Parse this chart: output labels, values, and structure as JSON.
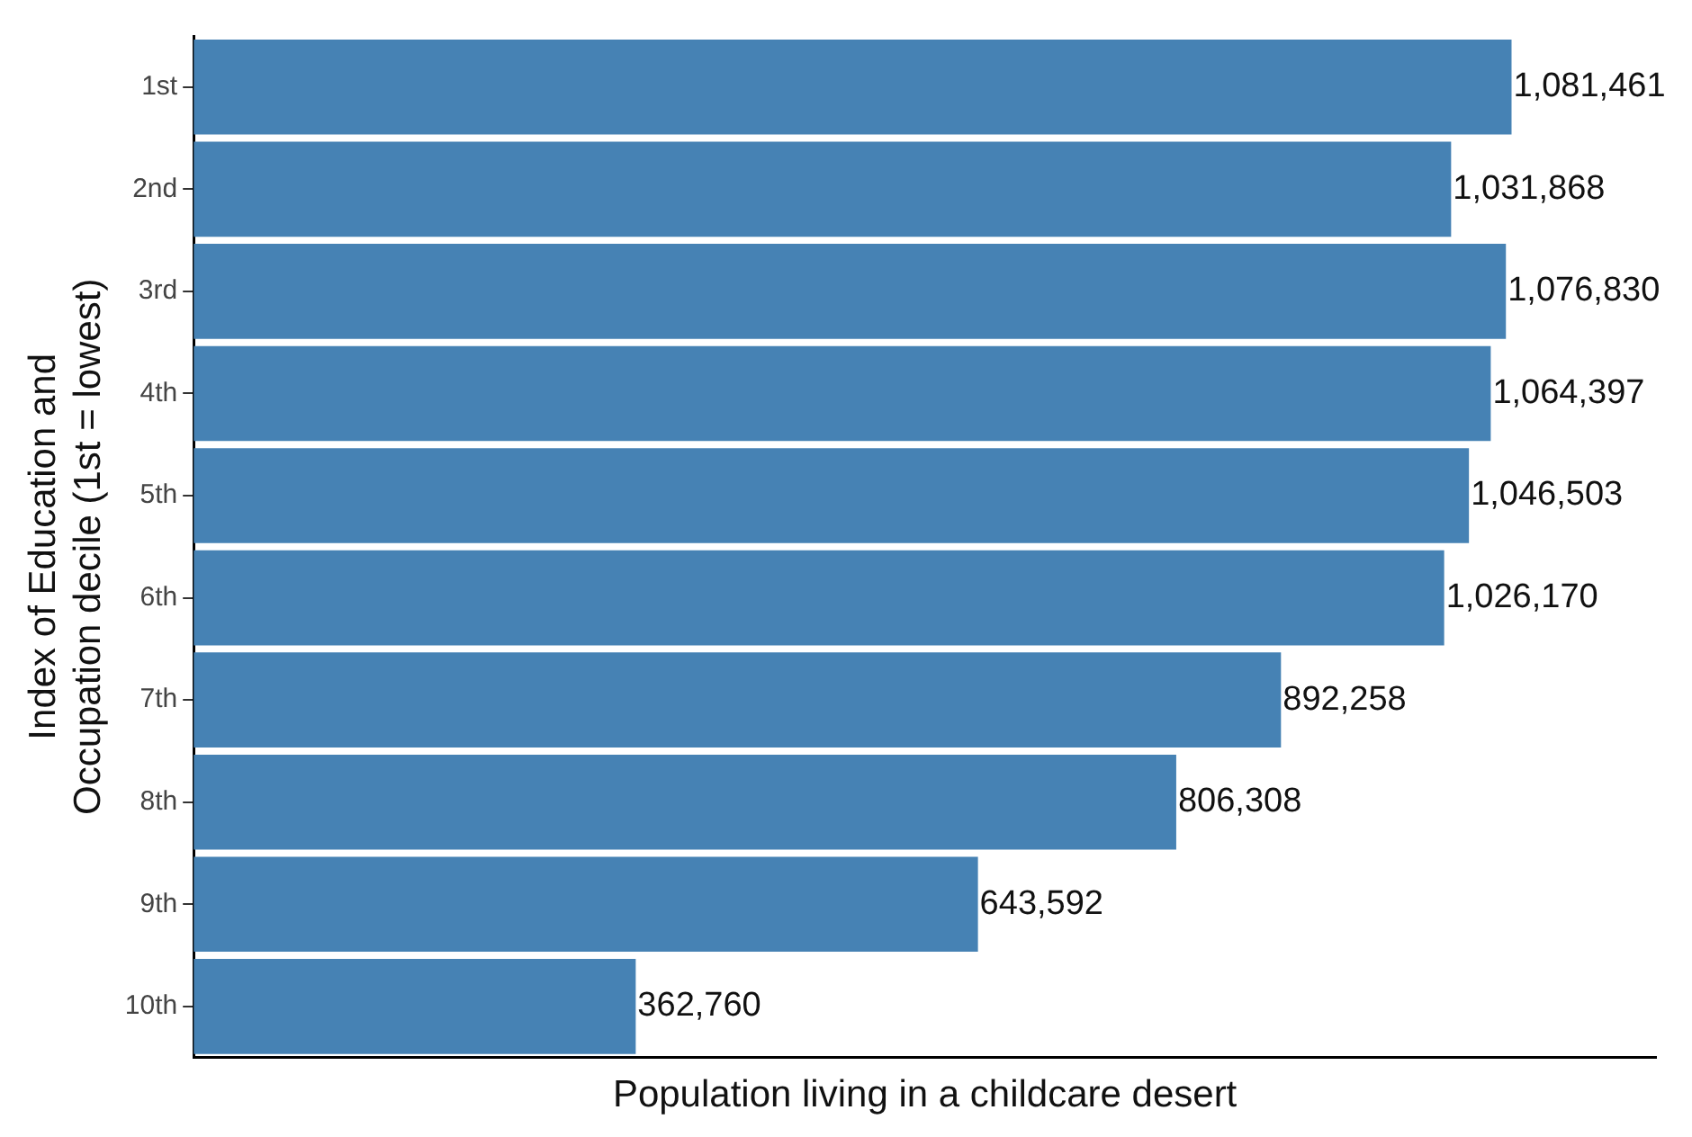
{
  "chart_data": {
    "type": "bar",
    "orientation": "horizontal",
    "xlabel": "Population living in a childcare desert",
    "ylabel": "Index of Education and\nOccupation decile (1st = lowest)",
    "categories": [
      "1st",
      "2nd",
      "3rd",
      "4th",
      "5th",
      "6th",
      "7th",
      "8th",
      "9th",
      "10th"
    ],
    "values": [
      1081461,
      1031868,
      1076830,
      1064397,
      1046503,
      1026170,
      892258,
      806308,
      643592,
      362760
    ],
    "value_labels": [
      "1,081,461",
      "1,031,868",
      "1,076,830",
      "1,064,397",
      "1,046,503",
      "1,026,170",
      "892,258",
      "806,308",
      "643,592",
      "362,760"
    ],
    "color": "#4682b4",
    "tick_labels": "y",
    "grid": false,
    "legend": false
  }
}
